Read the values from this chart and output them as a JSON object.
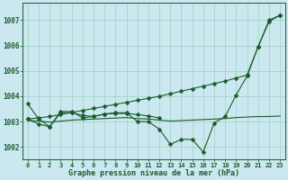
{
  "bg_color": "#cbe8f0",
  "grid_color": "#9ecfbe",
  "line_color": "#1a5c2a",
  "title": "Graphe pression niveau de la mer (hPa)",
  "xlim": [
    -0.5,
    23.5
  ],
  "ylim": [
    1001.5,
    1007.7
  ],
  "yticks": [
    1002,
    1003,
    1004,
    1005,
    1006,
    1007
  ],
  "xticks": [
    0,
    1,
    2,
    3,
    4,
    5,
    6,
    7,
    8,
    9,
    10,
    11,
    12,
    13,
    14,
    15,
    16,
    17,
    18,
    19,
    20,
    21,
    22,
    23
  ],
  "series_wavy": {
    "x": [
      0,
      1,
      2,
      3,
      4,
      5,
      6,
      7,
      8,
      9,
      10,
      11,
      12,
      13,
      14,
      15,
      16,
      17,
      18,
      19,
      20,
      21,
      22,
      23
    ],
    "y": [
      1003.7,
      1003.1,
      1002.8,
      1003.4,
      1003.4,
      1003.15,
      1003.2,
      1003.3,
      1003.35,
      1003.35,
      1003.0,
      1003.0,
      1002.7,
      1002.1,
      1002.3,
      1002.3,
      1001.8,
      1002.95,
      1003.2,
      1004.05,
      1004.8,
      1005.95,
      1007.0,
      1007.2
    ]
  },
  "series_rising": {
    "x": [
      0,
      1,
      2,
      3,
      4,
      5,
      6,
      7,
      8,
      9,
      10,
      11,
      12,
      13,
      14,
      15,
      16,
      17,
      18,
      19,
      20,
      21,
      22,
      23
    ],
    "y": [
      1003.1,
      1003.15,
      1003.2,
      1003.28,
      1003.36,
      1003.44,
      1003.52,
      1003.6,
      1003.68,
      1003.76,
      1003.84,
      1003.92,
      1004.0,
      1004.1,
      1004.2,
      1004.3,
      1004.4,
      1004.5,
      1004.6,
      1004.72,
      1004.84,
      1005.95,
      1006.95,
      1007.2
    ]
  },
  "series_short_flat": {
    "x": [
      0,
      1,
      2,
      3,
      4,
      5,
      6,
      7,
      8,
      9,
      10,
      11,
      12
    ],
    "y": [
      1003.1,
      1002.9,
      1002.8,
      1003.35,
      1003.35,
      1003.25,
      1003.2,
      1003.3,
      1003.32,
      1003.32,
      1003.28,
      1003.22,
      1003.15
    ]
  },
  "series_long_flat": {
    "x": [
      0,
      1,
      2,
      3,
      4,
      5,
      6,
      7,
      8,
      9,
      10,
      11,
      12,
      13,
      14,
      15,
      16,
      17,
      18,
      19,
      20,
      21,
      22,
      23
    ],
    "y": [
      1003.05,
      1003.02,
      1002.98,
      1003.02,
      1003.06,
      1003.08,
      1003.1,
      1003.12,
      1003.14,
      1003.16,
      1003.12,
      1003.1,
      1003.06,
      1003.02,
      1003.04,
      1003.06,
      1003.08,
      1003.1,
      1003.12,
      1003.16,
      1003.18,
      1003.2,
      1003.2,
      1003.22
    ]
  }
}
